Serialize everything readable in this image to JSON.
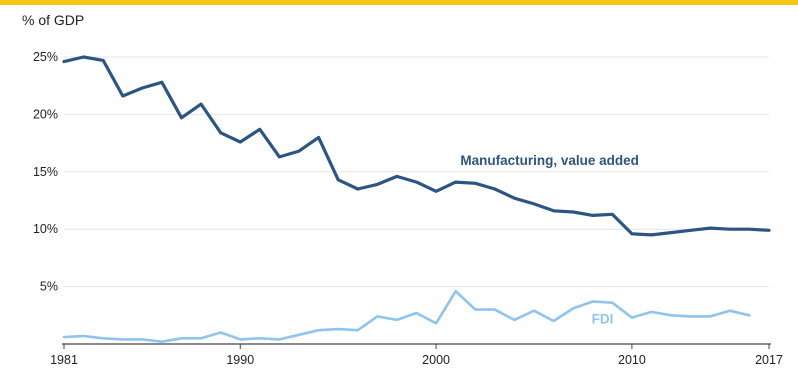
{
  "header": {
    "unit_label": "% of GDP"
  },
  "colors": {
    "accent_bar": "#f5c518",
    "manufacturing": "#2b5582",
    "fdi": "#8fc4ef",
    "grid": "#e6e6e6",
    "axis": "#444444"
  },
  "chart_data": {
    "type": "line",
    "title": "",
    "xlabel": "",
    "ylabel": "% of GDP",
    "xlim": [
      1981,
      2017
    ],
    "ylim": [
      0,
      25
    ],
    "grid": true,
    "x_ticks": [
      {
        "value": 1981,
        "label": "1981"
      },
      {
        "value": 1990,
        "label": "1990"
      },
      {
        "value": 2000,
        "label": "2000"
      },
      {
        "value": 2010,
        "label": "2010"
      },
      {
        "value": 2017,
        "label": "2017"
      }
    ],
    "y_ticks": [
      {
        "value": 5,
        "label": "5%"
      },
      {
        "value": 10,
        "label": "10%"
      },
      {
        "value": 15,
        "label": "15%"
      },
      {
        "value": 20,
        "label": "20%"
      },
      {
        "value": 25,
        "label": "25%"
      }
    ],
    "series": [
      {
        "name": "Manufacturing, value added",
        "color": "#2b5582",
        "x": [
          1981,
          1982,
          1983,
          1984,
          1985,
          1986,
          1987,
          1988,
          1989,
          1990,
          1991,
          1992,
          1993,
          1994,
          1995,
          1996,
          1997,
          1998,
          1999,
          2000,
          2001,
          2002,
          2003,
          2004,
          2005,
          2006,
          2007,
          2008,
          2009,
          2010,
          2011,
          2012,
          2013,
          2014,
          2015,
          2016,
          2017
        ],
        "values": [
          24.6,
          25.0,
          24.7,
          21.6,
          22.3,
          22.8,
          19.7,
          20.9,
          18.4,
          17.6,
          18.7,
          16.3,
          16.8,
          18.0,
          14.3,
          13.5,
          13.9,
          14.6,
          14.1,
          13.3,
          14.1,
          14.0,
          13.5,
          12.7,
          12.2,
          11.6,
          11.5,
          11.2,
          11.3,
          9.6,
          9.5,
          9.7,
          9.9,
          10.1,
          10.0,
          10.0,
          9.9
        ]
      },
      {
        "name": "FDI",
        "color": "#8fc4ef",
        "x": [
          1981,
          1982,
          1983,
          1984,
          1985,
          1986,
          1987,
          1988,
          1989,
          1990,
          1991,
          1992,
          1993,
          1994,
          1995,
          1996,
          1997,
          1998,
          1999,
          2000,
          2001,
          2002,
          2003,
          2004,
          2005,
          2006,
          2007,
          2008,
          2009,
          2010,
          2011,
          2012,
          2013,
          2014,
          2015,
          2016
        ],
        "values": [
          0.6,
          0.7,
          0.5,
          0.4,
          0.4,
          0.2,
          0.5,
          0.5,
          1.0,
          0.4,
          0.5,
          0.4,
          0.8,
          1.2,
          1.3,
          1.2,
          2.4,
          2.1,
          2.7,
          1.8,
          4.6,
          3.0,
          3.0,
          2.1,
          2.9,
          2.0,
          3.1,
          3.7,
          3.6,
          2.3,
          2.8,
          2.5,
          2.4,
          2.4,
          2.9,
          2.5
        ]
      }
    ],
    "annotations": [
      {
        "series": "Manufacturing, value added",
        "x": 2005.8,
        "y": 15.6,
        "text": "Manufacturing, value added"
      },
      {
        "series": "FDI",
        "x": 2008.5,
        "y": 1.8,
        "text": "FDI"
      }
    ]
  }
}
